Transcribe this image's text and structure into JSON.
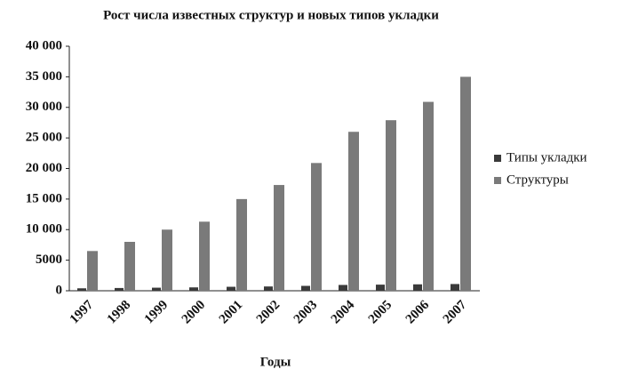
{
  "chart_data": {
    "type": "bar",
    "title": "Рост числа известных структур и новых типов укладки",
    "x_label": "Годы",
    "categories": [
      "1997",
      "1998",
      "1999",
      "2000",
      "2001",
      "2002",
      "2003",
      "2004",
      "2005",
      "2006",
      "2007"
    ],
    "series": [
      {
        "name": "Типы укладки",
        "color": "#3a3a3a",
        "values": [
          400,
          450,
          500,
          550,
          650,
          700,
          800,
          950,
          1000,
          1050,
          1100
        ]
      },
      {
        "name": "Структуры",
        "color": "#7a7a7a",
        "values": [
          6500,
          8000,
          10000,
          11300,
          15000,
          17300,
          20900,
          26000,
          27900,
          30900,
          35000
        ]
      }
    ],
    "ylim": [
      0,
      40000
    ],
    "yticks": [
      0,
      5000,
      {
        "value": 10000,
        "label": "10 000"
      },
      {
        "value": 15000,
        "label": "15 000"
      },
      {
        "value": 20000,
        "label": "20 000"
      },
      {
        "value": 25000,
        "label": "25 000"
      },
      {
        "value": 30000,
        "label": "30 000"
      },
      {
        "value": 35000,
        "label": "35 000"
      },
      {
        "value": 40000,
        "label": "40 000"
      }
    ],
    "legend": "right"
  }
}
